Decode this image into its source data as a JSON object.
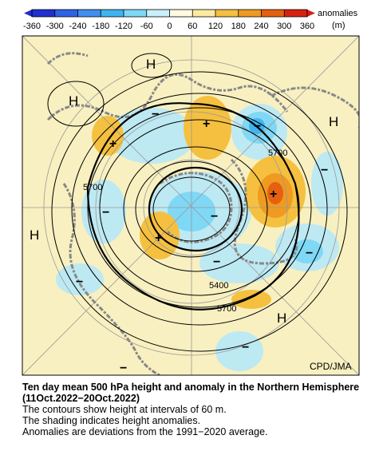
{
  "legend": {
    "ticks": [
      -360,
      -300,
      -240,
      -180,
      -120,
      -60,
      0,
      60,
      120,
      180,
      240,
      300,
      360
    ],
    "colors": [
      "#1f2fd0",
      "#2f62e6",
      "#3f8ff0",
      "#3fb4f0",
      "#7fd8f5",
      "#c8f0fa",
      "#fffbe0",
      "#fbeba0",
      "#f5c040",
      "#ef9a20",
      "#e56010",
      "#d82010"
    ],
    "title": "anomalies",
    "unit": "(m)"
  },
  "map": {
    "high_labels": [
      "H",
      "H",
      "H",
      "H",
      "H"
    ],
    "contour_labels": [
      "5700",
      "5700",
      "5400",
      "5700"
    ],
    "signs": [
      "+",
      "+",
      "+",
      "+",
      "−",
      "−",
      "−",
      "−",
      "−",
      "−",
      "−",
      "−",
      "−",
      "−"
    ],
    "credit": "CPD/JMA"
  },
  "caption": {
    "title": "Ten day mean 500 hPa height and anomaly in the Northern Hemisphere (11Oct.2022−20Oct.2022)",
    "lines": [
      "The contours show height at intervals of 60 m.",
      "The shading indicates height anomalies.",
      "Anomalies are deviations from the 1991−2020 average."
    ]
  }
}
